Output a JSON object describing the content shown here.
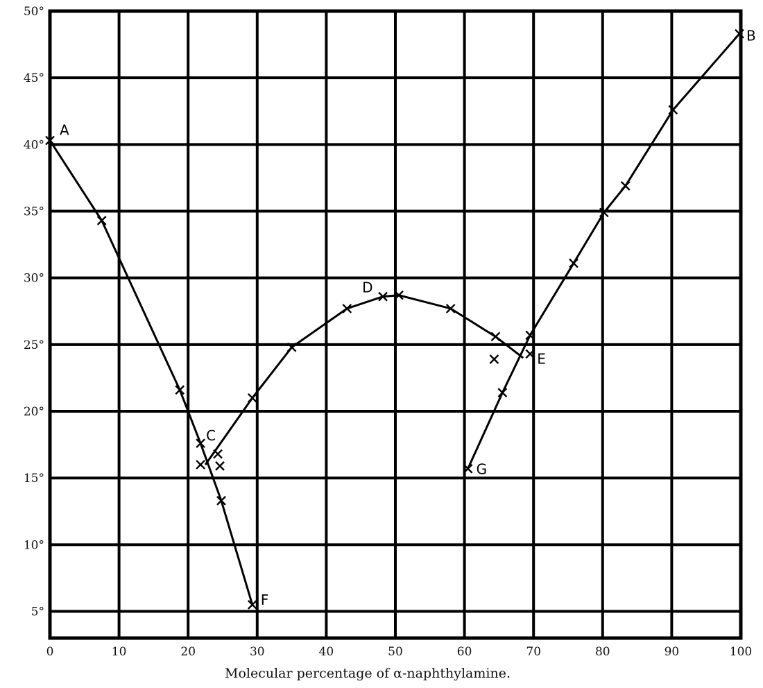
{
  "chart_data": {
    "type": "line",
    "title": "",
    "xlabel": "Molecular percentage of α-naphthylamine.",
    "ylabel": "",
    "xlim": [
      0,
      100
    ],
    "ylim": [
      3,
      50
    ],
    "grid": true,
    "x_ticks": [
      {
        "value": 0,
        "label": "0"
      },
      {
        "value": 10,
        "label": "10"
      },
      {
        "value": 20,
        "label": "20"
      },
      {
        "value": 30,
        "label": "30"
      },
      {
        "value": 40,
        "label": "40"
      },
      {
        "value": 50,
        "label": "50"
      },
      {
        "value": 60,
        "label": "60"
      },
      {
        "value": 70,
        "label": "70"
      },
      {
        "value": 80,
        "label": "80"
      },
      {
        "value": 90,
        "label": "90"
      },
      {
        "value": 100,
        "label": "100"
      }
    ],
    "y_ticks": [
      {
        "value": 5,
        "label": "5°"
      },
      {
        "value": 10,
        "label": "10°"
      },
      {
        "value": 15,
        "label": "15°"
      },
      {
        "value": 20,
        "label": "20°"
      },
      {
        "value": 25,
        "label": "25°"
      },
      {
        "value": 30,
        "label": "30°"
      },
      {
        "value": 35,
        "label": "35°"
      },
      {
        "value": 40,
        "label": "40°"
      },
      {
        "value": 45,
        "label": "45°"
      },
      {
        "value": 50,
        "label": "50°"
      }
    ],
    "series": [
      {
        "points": [
          [
            0,
            40.3
          ],
          [
            7.5,
            34.3
          ],
          [
            18.8,
            21.6
          ],
          [
            21.8,
            17.6
          ],
          [
            24.8,
            13.3
          ],
          [
            29.3,
            5.5
          ]
        ]
      },
      {
        "points": [
          [
            22.5,
            16.0
          ],
          [
            29.3,
            21.0
          ],
          [
            35,
            24.8
          ],
          [
            43,
            27.7
          ],
          [
            48.2,
            28.6
          ],
          [
            50.5,
            28.7
          ],
          [
            58,
            27.7
          ],
          [
            64.5,
            25.6
          ],
          [
            68.5,
            24.0
          ]
        ]
      },
      {
        "points": [
          [
            60.5,
            15.7
          ],
          [
            65.5,
            21.4
          ],
          [
            69.5,
            25.7
          ],
          [
            75.8,
            31.1
          ],
          [
            80.2,
            34.9
          ],
          [
            83.3,
            36.9
          ],
          [
            90.2,
            42.6
          ],
          [
            99.8,
            48.3
          ]
        ]
      }
    ],
    "markers": [
      [
        0,
        40.3
      ],
      [
        7.5,
        34.3
      ],
      [
        18.8,
        21.6
      ],
      [
        21.8,
        17.6
      ],
      [
        24.8,
        13.3
      ],
      [
        29.3,
        5.5
      ],
      [
        21.8,
        16.0
      ],
      [
        24.3,
        16.8
      ],
      [
        24.6,
        15.9
      ],
      [
        29.3,
        21.0
      ],
      [
        35,
        24.8
      ],
      [
        43,
        27.7
      ],
      [
        48.2,
        28.6
      ],
      [
        50.5,
        28.7
      ],
      [
        58,
        27.7
      ],
      [
        64.5,
        25.6
      ],
      [
        64.3,
        23.9
      ],
      [
        69.5,
        24.3
      ],
      [
        60.5,
        15.7
      ],
      [
        65.5,
        21.4
      ],
      [
        69.5,
        25.7
      ],
      [
        75.8,
        31.1
      ],
      [
        80.2,
        34.9
      ],
      [
        83.3,
        36.9
      ],
      [
        90.2,
        42.6
      ],
      [
        99.8,
        48.3
      ]
    ],
    "point_labels": [
      {
        "text": "A",
        "x": 0,
        "y": 40.3
      },
      {
        "text": "B",
        "x": 99.8,
        "y": 48.3
      },
      {
        "text": "C",
        "x": 21.8,
        "y": 17.6
      },
      {
        "text": "D",
        "x": 48.2,
        "y": 28.6
      },
      {
        "text": "E",
        "x": 69.5,
        "y": 24.3
      },
      {
        "text": "F",
        "x": 29.3,
        "y": 5.5
      },
      {
        "text": "G",
        "x": 60.5,
        "y": 15.7
      }
    ]
  }
}
